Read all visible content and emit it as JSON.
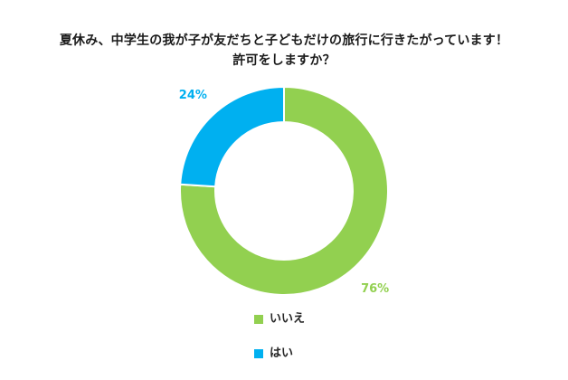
{
  "chart_data": {
    "type": "pie",
    "donut": true,
    "title_lines": [
      "夏休み、中学生の我が子が友だちと子どもだけの旅行に行きたがっています！",
      "許可をしますか？"
    ],
    "categories": [
      "いいえ",
      "はい"
    ],
    "values": [
      76,
      24
    ],
    "data_labels": [
      "76%",
      "24%"
    ],
    "colors": [
      "#92d050",
      "#00b0f0"
    ],
    "legend_position": "bottom"
  }
}
